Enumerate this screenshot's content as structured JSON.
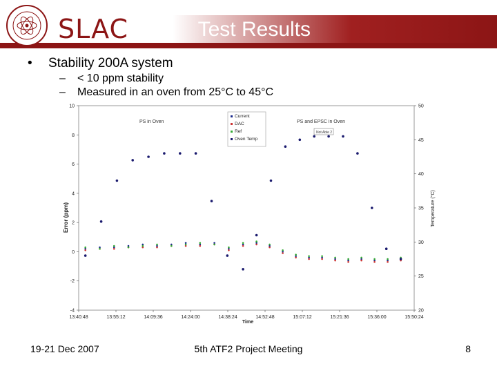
{
  "header": {
    "logo_text": "SLAC",
    "title": "Test Results",
    "seal_text": "STANFORD LINEAR ACCELERATOR CENTER 1962",
    "colors": {
      "brand": "#8c1515",
      "title_text": "#ffffff"
    }
  },
  "bullets": {
    "main": "Stability 200A system",
    "sub": [
      "< 10 ppm stability",
      "Measured in an oven from 25°C to 45°C"
    ]
  },
  "chart_data": {
    "type": "scatter",
    "ylabel": "Error (ppm)",
    "y2label": "Temperature (°C)",
    "xlabel": "Time",
    "ylim": [
      -4,
      10
    ],
    "y2lim": [
      20,
      50
    ],
    "y_ticks": [
      "-4",
      "-2",
      "0",
      "2",
      "4",
      "6",
      "8",
      "10"
    ],
    "y2_ticks": [
      "20",
      "25",
      "30",
      "35",
      "40",
      "45",
      "50"
    ],
    "x_ticks": [
      "13:40:48",
      "13:55:12",
      "14:09:36",
      "14:24:00",
      "14:38:24",
      "14:52:48",
      "15:07:12",
      "15:21:36",
      "15:36:00",
      "15:50:24"
    ],
    "annotations": [
      "PS in Oven",
      "PS and EPSC in Oven"
    ],
    "legend_position": "top-center",
    "grid": false,
    "series": [
      {
        "name": "Current",
        "axis": "left",
        "color": "#1a2a8c",
        "values": [
          0.2,
          0.3,
          0.3,
          0.4,
          0.5,
          0.4,
          0.5,
          0.6,
          0.5,
          0.6,
          0.2,
          0.5,
          0.6,
          0.4,
          0.0,
          -0.3,
          -0.4,
          -0.4,
          -0.5,
          -0.6,
          -0.5,
          -0.6,
          -0.6,
          -0.5
        ]
      },
      {
        "name": "DAC",
        "axis": "left",
        "color": "#cc3333",
        "values": [
          0.1,
          0.2,
          0.2,
          0.3,
          0.3,
          0.3,
          0.4,
          0.4,
          0.4,
          0.5,
          0.1,
          0.4,
          0.5,
          0.3,
          -0.1,
          -0.4,
          -0.5,
          -0.5,
          -0.6,
          -0.7,
          -0.6,
          -0.7,
          -0.7,
          -0.6
        ]
      },
      {
        "name": "Ref",
        "axis": "left",
        "color": "#33aa33",
        "values": [
          0.3,
          0.2,
          0.4,
          0.3,
          0.4,
          0.5,
          0.4,
          0.5,
          0.6,
          0.5,
          0.3,
          0.6,
          0.7,
          0.5,
          0.1,
          -0.2,
          -0.3,
          -0.3,
          -0.4,
          -0.5,
          -0.4,
          -0.5,
          -0.5,
          -0.4
        ]
      },
      {
        "name": "Oven Temp",
        "axis": "right",
        "color": "#1a1a6e",
        "values": [
          28,
          33,
          39,
          42,
          42.5,
          43,
          43,
          43,
          36,
          28,
          26,
          31,
          39,
          44,
          45,
          45.5,
          45.5,
          45.5,
          43,
          35,
          29,
          27.5
        ]
      }
    ],
    "callout": "Not Able 2"
  },
  "footer": {
    "left": "19-21 Dec 2007",
    "center": "5th ATF2 Project Meeting",
    "page": "8"
  }
}
